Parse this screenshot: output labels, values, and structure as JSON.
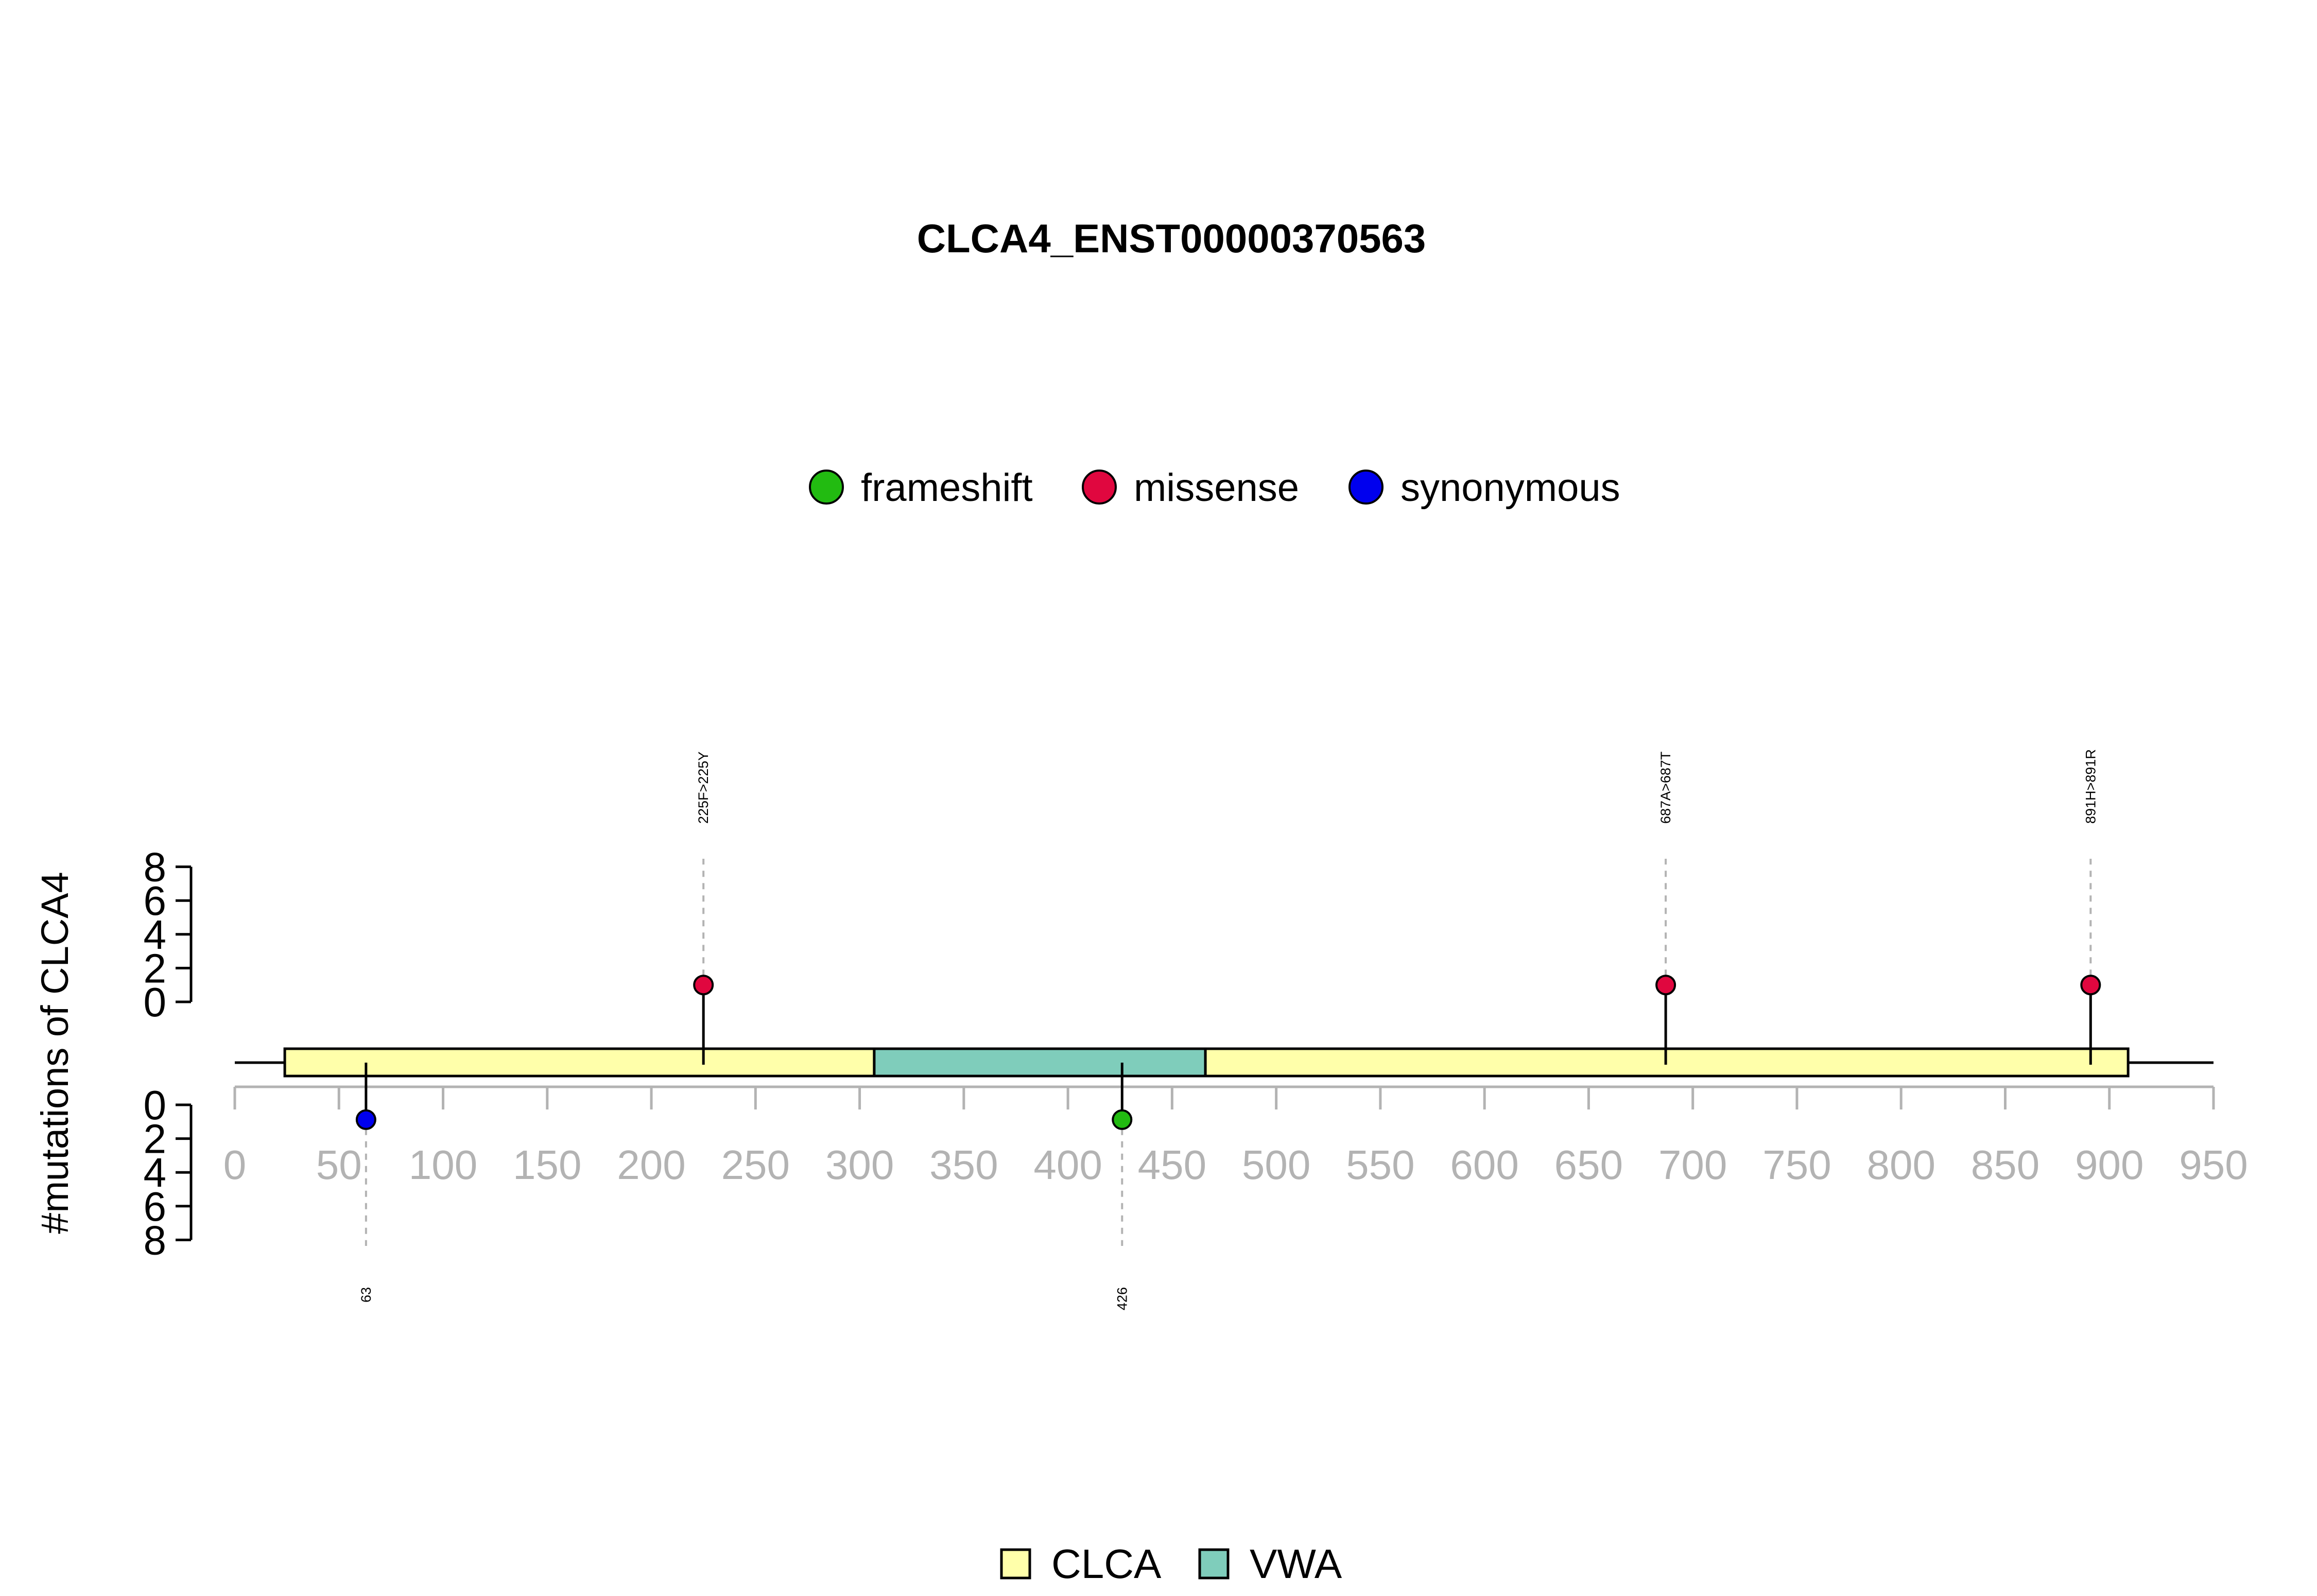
{
  "chart_data": {
    "type": "lollipop",
    "title": "CLCA4_ENST00000370563",
    "ylabel": "#mutations of CLCA4",
    "x_ticks": [
      0,
      50,
      100,
      150,
      200,
      250,
      300,
      350,
      400,
      450,
      500,
      550,
      600,
      650,
      700,
      750,
      800,
      850,
      900,
      950
    ],
    "xlim": [
      0,
      950
    ],
    "protein_range": [
      24,
      909
    ],
    "y_ticks": [
      0,
      2,
      4,
      6,
      8
    ],
    "ylim": [
      0,
      8
    ],
    "mutation_legend": [
      {
        "label": "frameshift",
        "color": "#22bb11"
      },
      {
        "label": "missense",
        "color": "#e0073f"
      },
      {
        "label": "synonymous",
        "color": "#0000ee"
      }
    ],
    "domain_legend": [
      {
        "label": "CLCA",
        "color": "#ffffaa"
      },
      {
        "label": "VWA",
        "color": "#7fcdbb"
      }
    ],
    "domains": [
      {
        "name": "CLCA",
        "start": 24,
        "end": 307,
        "color": "#ffffaa"
      },
      {
        "name": "VWA",
        "start": 307,
        "end": 466,
        "color": "#7fcdbb"
      },
      {
        "name": "CLCA",
        "start": 466,
        "end": 909,
        "color": "#ffffaa"
      }
    ],
    "mutations_top": [
      {
        "position": 225,
        "count": 1,
        "type": "missense",
        "color": "#e0073f",
        "label": "225F>225Y"
      },
      {
        "position": 687,
        "count": 1,
        "type": "missense",
        "color": "#e0073f",
        "label": "687A>687T"
      },
      {
        "position": 891,
        "count": 1,
        "type": "missense",
        "color": "#e0073f",
        "label": "891H>891R"
      }
    ],
    "mutations_bottom": [
      {
        "position": 63,
        "count": 1,
        "type": "synonymous",
        "color": "#0000ee",
        "label": "63"
      },
      {
        "position": 426,
        "count": 1,
        "type": "frameshift",
        "color": "#22bb11",
        "label": "426"
      }
    ]
  }
}
